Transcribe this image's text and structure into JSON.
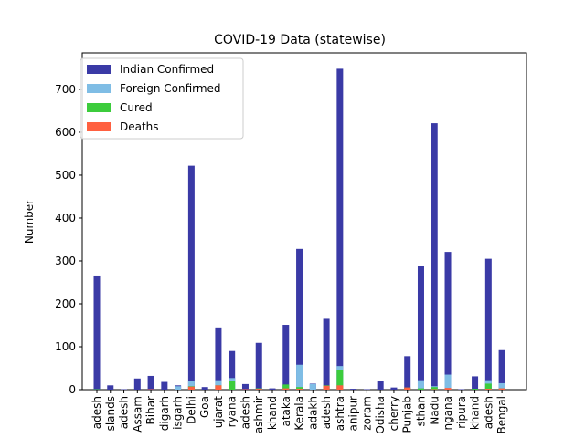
{
  "chart_data": {
    "type": "bar",
    "title": "COVID-19 Data (statewise)",
    "y_label": "Number",
    "categories": [
      "adesh",
      "slands",
      "adesh",
      "Assam",
      "Bihar",
      "digarh",
      "isgarh",
      "Delhi",
      "Goa",
      "ujarat",
      "ryana",
      "adesh",
      "ashmir",
      "khand",
      "ataka",
      "Kerala",
      "adakh",
      "adesh",
      "ashtra",
      "anipur",
      "zoram",
      "Odisha",
      "cherry",
      "Punjab",
      "sthan",
      "Nadu",
      "ngana",
      "ripura",
      "khand",
      "adesh",
      "Bengal"
    ],
    "series": [
      {
        "name": "Indian Confirmed",
        "color": "#3a3aa6",
        "values": [
          266,
          10,
          1,
          26,
          32,
          18,
          10,
          522,
          6,
          145,
          90,
          13,
          109,
          3,
          151,
          328,
          14,
          165,
          748,
          2,
          1,
          21,
          5,
          78,
          288,
          621,
          321,
          1,
          31,
          305,
          92
        ]
      },
      {
        "name": "Foreign Confirmed",
        "color": "#7fbde5",
        "values": [
          0,
          0,
          0,
          0,
          0,
          0,
          8,
          20,
          0,
          22,
          27,
          0,
          3,
          0,
          10,
          58,
          13,
          4,
          55,
          0,
          0,
          0,
          0,
          0,
          22,
          8,
          35,
          0,
          0,
          22,
          15
        ]
      },
      {
        "name": "Cured",
        "color": "#3ccc3c",
        "values": [
          1,
          0,
          0,
          0,
          0,
          0,
          0,
          8,
          0,
          10,
          20,
          0,
          3,
          0,
          12,
          6,
          0,
          10,
          46,
          0,
          0,
          0,
          0,
          5,
          3,
          6,
          1,
          0,
          2,
          14,
          3
        ]
      },
      {
        "name": "Deaths",
        "color": "#ff6040",
        "values": [
          0,
          0,
          0,
          0,
          1,
          0,
          0,
          7,
          0,
          10,
          0,
          1,
          2,
          0,
          3,
          2,
          0,
          9,
          10,
          0,
          0,
          0,
          0,
          5,
          0,
          1,
          4,
          0,
          0,
          2,
          3
        ]
      }
    ],
    "ylim": [
      0,
      785
    ],
    "yticks": [
      0,
      100,
      200,
      300,
      400,
      500,
      600,
      700
    ],
    "legend": "upper left"
  }
}
